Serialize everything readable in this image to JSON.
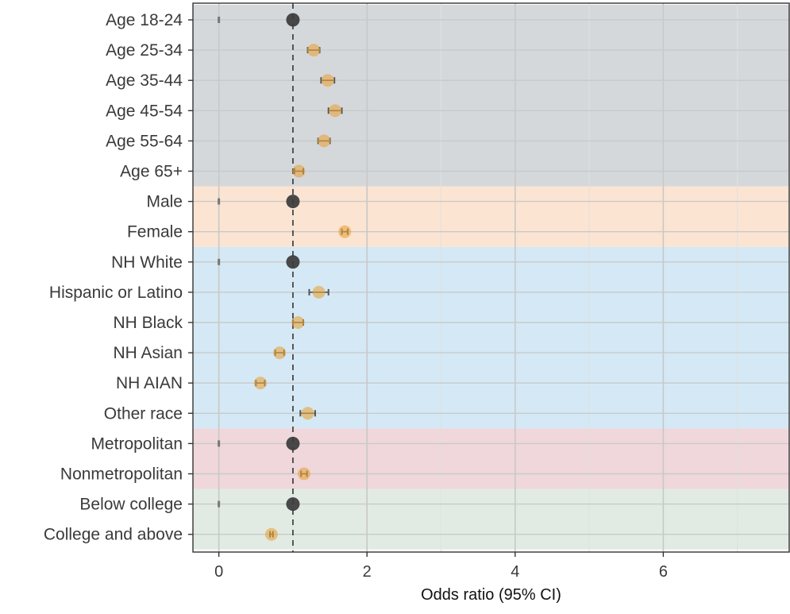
{
  "chart_data": {
    "type": "scatter",
    "subtype": "forest-plot",
    "title": "",
    "xlabel": "Odds ratio (95% CI)",
    "ylabel": "",
    "xlim": [
      -0.35,
      7.7
    ],
    "x_ticks": [
      0,
      2,
      4,
      6
    ],
    "x_tick_labels": [
      "0",
      "2",
      "4",
      "6"
    ],
    "reference_line": 1,
    "grid": true,
    "legend": "none",
    "colors": {
      "reference_point": "#3b3b3b",
      "estimate_point": "#e8a33a",
      "error_bar": "#555555",
      "panel_border": "#333333",
      "grid": "#dcdcdc"
    },
    "groups": [
      {
        "rows": [
          0,
          5
        ],
        "color": "#d5d8db"
      },
      {
        "rows": [
          6,
          7
        ],
        "color": "#fce4d2"
      },
      {
        "rows": [
          8,
          13
        ],
        "color": "#d4e9f5"
      },
      {
        "rows": [
          14,
          15
        ],
        "color": "#f0d7db"
      },
      {
        "rows": [
          16,
          17
        ],
        "color": "#e1ebe4"
      }
    ],
    "categories": [
      "Age 18-24",
      "Age 25-34",
      "Age 35-44",
      "Age 45-54",
      "Age 55-64",
      "Age 65+",
      "Male",
      "Female",
      "NH White",
      "Hispanic or Latino",
      "NH Black",
      "NH Asian",
      "NH AIAN",
      "Other race",
      "Metropolitan",
      "Nonmetropolitan",
      "Below college",
      "College and above"
    ],
    "points": [
      {
        "label": "Age 18-24",
        "or": 1.0,
        "lo": 1.0,
        "hi": 1.0,
        "reference": true
      },
      {
        "label": "Age 25-34",
        "or": 1.28,
        "lo": 1.2,
        "hi": 1.36,
        "reference": false
      },
      {
        "label": "Age 35-44",
        "or": 1.47,
        "lo": 1.38,
        "hi": 1.56,
        "reference": false
      },
      {
        "label": "Age 45-54",
        "or": 1.57,
        "lo": 1.48,
        "hi": 1.66,
        "reference": false
      },
      {
        "label": "Age 55-64",
        "or": 1.42,
        "lo": 1.34,
        "hi": 1.5,
        "reference": false
      },
      {
        "label": "Age 65+",
        "or": 1.08,
        "lo": 1.02,
        "hi": 1.14,
        "reference": false
      },
      {
        "label": "Male",
        "or": 1.0,
        "lo": 1.0,
        "hi": 1.0,
        "reference": true
      },
      {
        "label": "Female",
        "or": 1.7,
        "lo": 1.66,
        "hi": 1.74,
        "reference": false
      },
      {
        "label": "NH White",
        "or": 1.0,
        "lo": 1.0,
        "hi": 1.0,
        "reference": true
      },
      {
        "label": "Hispanic or Latino",
        "or": 1.35,
        "lo": 1.22,
        "hi": 1.48,
        "reference": false
      },
      {
        "label": "NH Black",
        "or": 1.07,
        "lo": 1.0,
        "hi": 1.14,
        "reference": false
      },
      {
        "label": "NH Asian",
        "or": 0.82,
        "lo": 0.76,
        "hi": 0.88,
        "reference": false
      },
      {
        "label": "NH AIAN",
        "or": 0.56,
        "lo": 0.5,
        "hi": 0.62,
        "reference": false
      },
      {
        "label": "Other race",
        "or": 1.2,
        "lo": 1.1,
        "hi": 1.3,
        "reference": false
      },
      {
        "label": "Metropolitan",
        "or": 1.0,
        "lo": 1.0,
        "hi": 1.0,
        "reference": true
      },
      {
        "label": "Nonmetropolitan",
        "or": 1.15,
        "lo": 1.11,
        "hi": 1.19,
        "reference": false
      },
      {
        "label": "Below college",
        "or": 1.0,
        "lo": 1.0,
        "hi": 1.0,
        "reference": true
      },
      {
        "label": "College and above",
        "or": 0.71,
        "lo": 0.69,
        "hi": 0.73,
        "reference": false
      }
    ]
  }
}
